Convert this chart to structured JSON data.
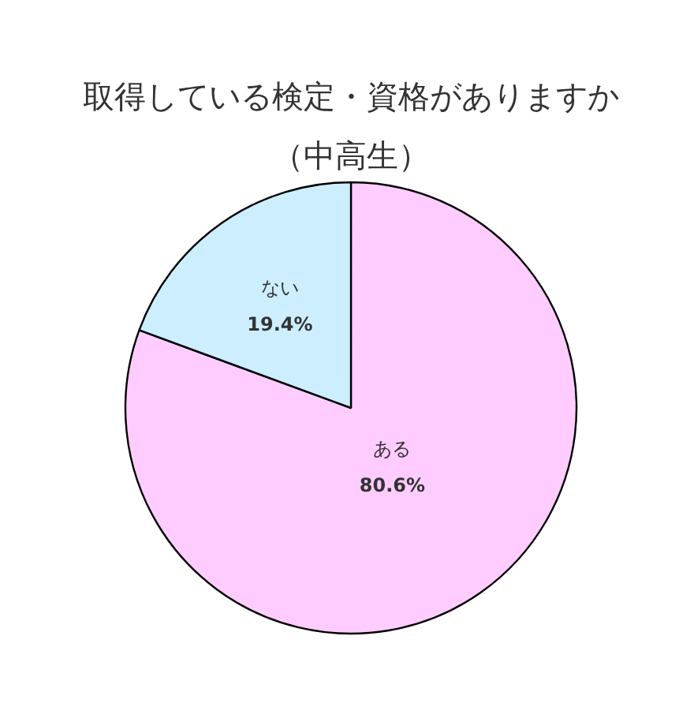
{
  "chart_data": {
    "type": "pie",
    "title": "取得している検定・資格がありますか",
    "subtitle": "（中高生）",
    "categories": [
      "ある",
      "ない"
    ],
    "values": [
      80.6,
      19.4
    ],
    "colors": [
      "#ffccff",
      "#cceeff"
    ],
    "value_labels": [
      "80.6%",
      "19.4%"
    ]
  }
}
